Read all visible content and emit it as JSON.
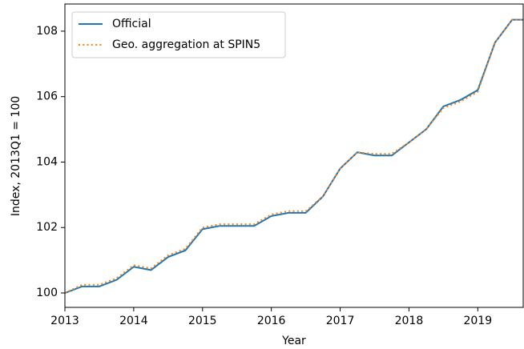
{
  "chart_data": {
    "type": "line",
    "x_label": "Year",
    "y_label": "Index, 2013Q1 = 100",
    "x": [
      2013,
      2013.25,
      2013.5,
      2013.75,
      2014,
      2014.25,
      2014.5,
      2014.75,
      2015,
      2015.25,
      2015.5,
      2015.75,
      2016,
      2016.25,
      2016.5,
      2016.75,
      2017,
      2017.25,
      2017.5,
      2017.75,
      2018,
      2018.25,
      2018.5,
      2018.75,
      2019,
      2019.25,
      2019.5,
      2019.75
    ],
    "series": [
      {
        "name": "Official",
        "color": "#1f77b4",
        "dash": "solid",
        "values": [
          100.0,
          100.2,
          100.2,
          100.4,
          100.8,
          100.7,
          101.1,
          101.3,
          101.95,
          102.05,
          102.05,
          102.05,
          102.35,
          102.45,
          102.45,
          102.95,
          103.8,
          104.3,
          104.2,
          104.2,
          104.6,
          105.0,
          105.7,
          105.9,
          106.2,
          107.65,
          108.35,
          108.35
        ]
      },
      {
        "name": "Geo. aggregation at SPIN5",
        "color": "#ff7f0e",
        "dash": "dotted",
        "values": [
          100.0,
          100.25,
          100.25,
          100.45,
          100.85,
          100.75,
          101.15,
          101.35,
          102.0,
          102.1,
          102.1,
          102.1,
          102.4,
          102.5,
          102.5,
          102.95,
          103.8,
          104.3,
          104.25,
          104.25,
          104.6,
          105.0,
          105.65,
          105.85,
          106.15,
          107.65,
          108.35,
          108.35
        ]
      }
    ],
    "xlim": [
      2013,
      2019.66
    ],
    "ylim": [
      99.56,
      108.83
    ],
    "xticks": [
      2013,
      2014,
      2015,
      2016,
      2017,
      2018,
      2019
    ],
    "yticks": [
      100,
      102,
      104,
      106,
      108
    ],
    "grid": false,
    "legend": "upper-left"
  }
}
